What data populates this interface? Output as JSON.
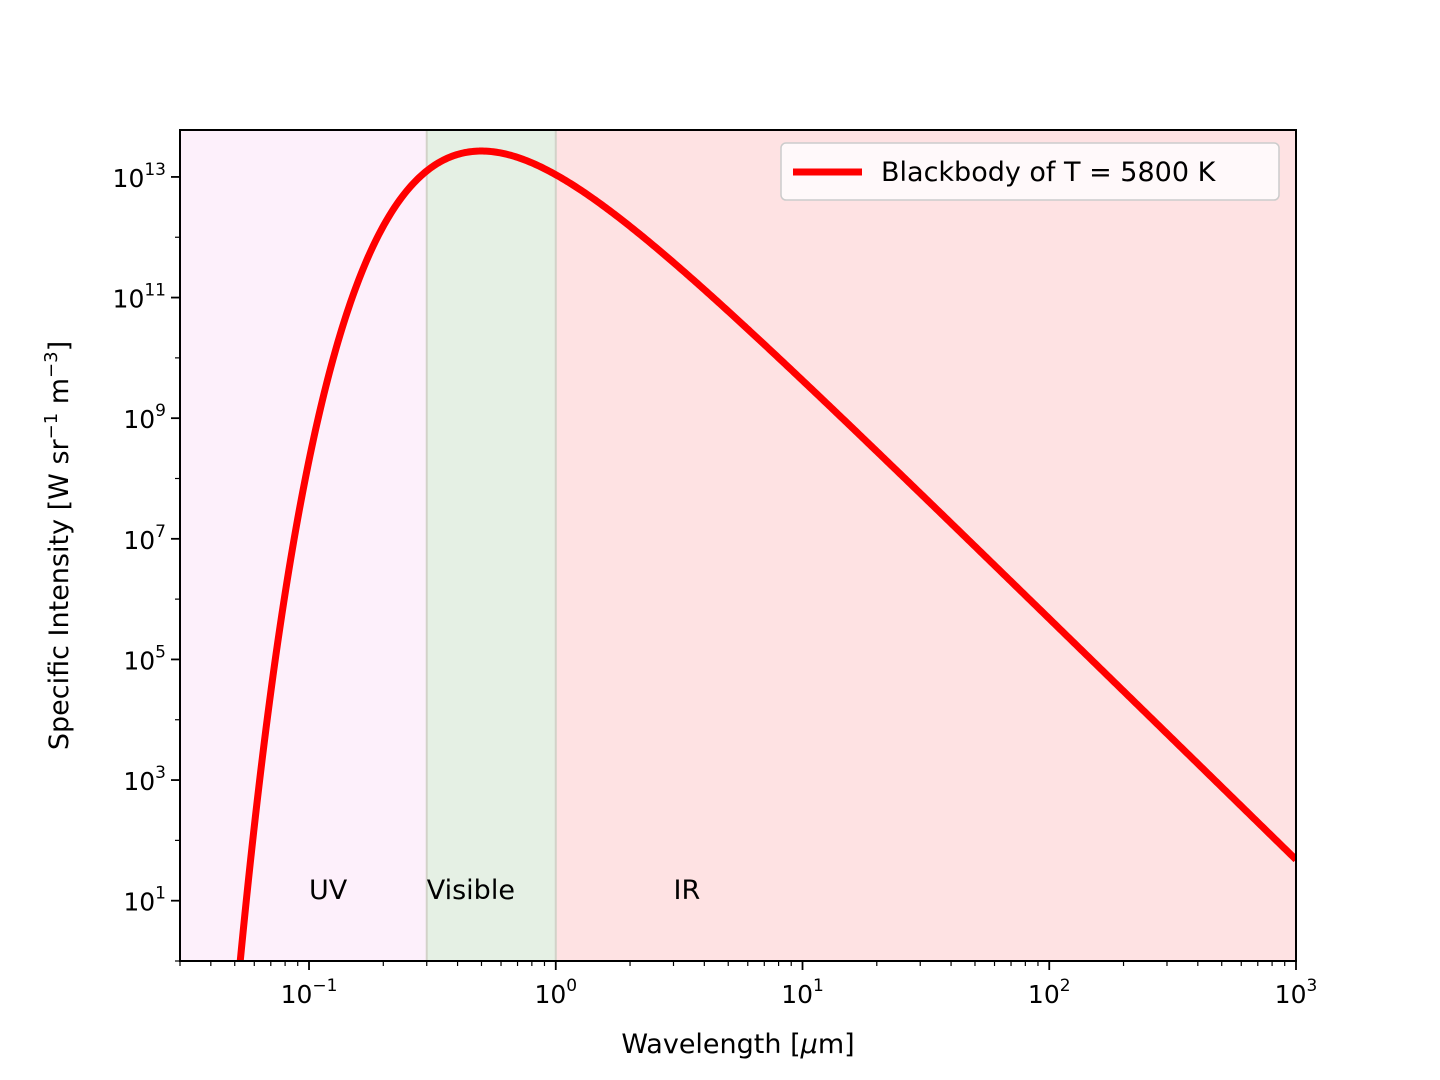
{
  "chart_data": {
    "type": "line",
    "xlabel_prefix": "Wavelength [",
    "xlabel_mu": "μ",
    "xlabel_suffix": "m]",
    "ylabel_main": "Specific Intensity [W sr",
    "ylabel_exp1": "−1",
    "ylabel_mid": " m",
    "ylabel_exp2": "−3",
    "ylabel_end": "]",
    "x_scale": "log",
    "y_scale": "log",
    "x_unit": "μm",
    "xlim": [
      0.03,
      1000
    ],
    "ylim": [
      1,
      60000000000000.0
    ],
    "x_ticks": [
      {
        "value": 0.1,
        "base": "10",
        "exp": "−1"
      },
      {
        "value": 1,
        "base": "10",
        "exp": "0"
      },
      {
        "value": 10,
        "base": "10",
        "exp": "1"
      },
      {
        "value": 100,
        "base": "10",
        "exp": "2"
      },
      {
        "value": 1000,
        "base": "10",
        "exp": "3"
      }
    ],
    "y_ticks": [
      {
        "value": 10,
        "base": "10",
        "exp": "1"
      },
      {
        "value": 1000,
        "base": "10",
        "exp": "3"
      },
      {
        "value": 100000,
        "base": "10",
        "exp": "5"
      },
      {
        "value": 10000000,
        "base": "10",
        "exp": "7"
      },
      {
        "value": 1000000000,
        "base": "10",
        "exp": "9"
      },
      {
        "value": 100000000000,
        "base": "10",
        "exp": "11"
      },
      {
        "value": 10000000000000,
        "base": "10",
        "exp": "13"
      }
    ],
    "regions": [
      {
        "label": "UV",
        "x_start": 0.03,
        "x_end": 0.3,
        "color": "#fdf0fb",
        "label_x": 0.1
      },
      {
        "label": "Visible",
        "x_start": 0.3,
        "x_end": 1,
        "color": "#e5f0e4",
        "label_x": 0.3
      },
      {
        "label": "IR",
        "x_start": 1,
        "x_end": 1000,
        "color": "#fee2e3",
        "label_x": 3
      }
    ],
    "region_label_y": 15,
    "series": [
      {
        "name": "Blackbody of T = 5800 K",
        "temperature_K": 5800,
        "color": "#ff0000",
        "x": [
          0.0523,
          0.06,
          0.07,
          0.08,
          0.1,
          0.15,
          0.2,
          0.3,
          0.5,
          0.7,
          1,
          2,
          5,
          10,
          20,
          50,
          100,
          200,
          500,
          1000
        ],
        "y": [
          1.0,
          71,
          6600.0,
          160000.0,
          9200000.0,
          12000000000.0,
          210000000000.0,
          1470000000000.0,
          26800000000000.0,
          20300000000000.0,
          10700000000000.0,
          1610000000000.0,
          77000000000.0,
          5300000000.0,
          347000000.0,
          9100000.0,
          570000.0,
          36000.0,
          920.0,
          57
        ]
      }
    ],
    "legend": {
      "position": "upper right"
    },
    "grid": false
  }
}
